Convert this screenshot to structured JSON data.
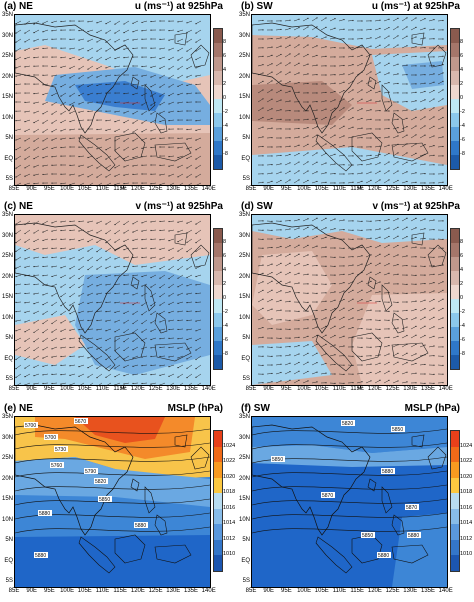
{
  "panels": [
    {
      "id": "a",
      "label": "(a) NE",
      "title": "u (ms⁻¹) at 925hPa",
      "kind": "wind",
      "scheme": "div",
      "ref": "10"
    },
    {
      "id": "b",
      "label": "(b) SW",
      "title": "u (ms⁻¹) at 925hPa",
      "kind": "wind",
      "scheme": "div",
      "ref": "10"
    },
    {
      "id": "c",
      "label": "(c) NE",
      "title": "v (ms⁻¹) at 925hPa",
      "kind": "wind",
      "scheme": "div",
      "ref": "10"
    },
    {
      "id": "d",
      "label": "(d) SW",
      "title": "v (ms⁻¹) at 925hPa",
      "kind": "wind",
      "scheme": "div",
      "ref": "10"
    },
    {
      "id": "e",
      "label": "(e) NE",
      "title": "MSLP (hPa)",
      "kind": "mslp",
      "scheme": "mslp",
      "contours": [
        "5700",
        "5670",
        "5700",
        "5730",
        "5760",
        "5790",
        "5820",
        "5850",
        "5880",
        "5880",
        "5880"
      ]
    },
    {
      "id": "f",
      "label": "(f) SW",
      "title": "MSLP (hPa)",
      "kind": "mslp",
      "scheme": "mslp",
      "contours": [
        "5820",
        "5850",
        "5850",
        "5880",
        "5870",
        "5870",
        "5850",
        "5880",
        "5880"
      ]
    }
  ],
  "axes": {
    "y_ticks": [
      "35N",
      "30N",
      "25N",
      "20N",
      "15N",
      "10N",
      "5N",
      "EQ",
      "5S"
    ],
    "x_ticks": [
      "85E",
      "90E",
      "95E",
      "100E",
      "105E",
      "110E",
      "115E",
      "120E",
      "125E",
      "130E",
      "135E",
      "140E"
    ]
  },
  "colorbars": {
    "div": {
      "labels": [
        "8",
        "6",
        "4",
        "2",
        "0",
        "-2",
        "-4",
        "-6",
        "-8"
      ],
      "colors": [
        "#8a5a4e",
        "#a5766a",
        "#c0988c",
        "#d8b8ae",
        "#eed8d0",
        "#bfe8f4",
        "#8cc8ec",
        "#5aa0dc",
        "#2f78c8",
        "#1c5aa8"
      ]
    },
    "mslp": {
      "labels": [
        "1024",
        "1022",
        "1020",
        "1018",
        "1016",
        "1014",
        "1012",
        "1010"
      ],
      "colors": [
        "#e8401a",
        "#f06a18",
        "#f89a20",
        "#fcc840",
        "#b8dcf0",
        "#88bce8",
        "#5a98dc",
        "#3476c8",
        "#1c56b0"
      ]
    }
  },
  "colors": {
    "brown_dark": "#b88a7c",
    "brown": "#d4ab9c",
    "pink": "#e6c4b8",
    "light_blue": "#a6d4ee",
    "blue": "#76aee0",
    "deep_blue": "#3a7ed0",
    "mslp_deep": "#1f66c8",
    "mslp_mid": "#3d86d6",
    "mslp_light": "#6aa8e2",
    "mslp_orange": "#f48a2a",
    "mslp_red": "#e8521e",
    "mslp_yellow": "#f8c44a"
  }
}
